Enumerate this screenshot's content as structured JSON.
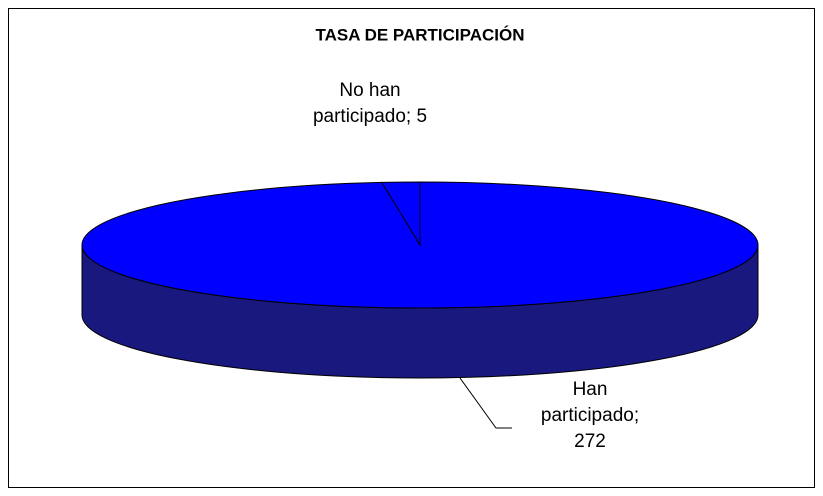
{
  "chart_data": {
    "type": "pie3d",
    "title": "TASA DE PARTICIPACIÓN",
    "values": [
      5,
      272
    ],
    "value_labels": [
      "No han participado; 5",
      "Han participado; 272"
    ],
    "colors": [
      "#0000ff",
      "#0000ff"
    ],
    "side_color": "#18187f"
  }
}
